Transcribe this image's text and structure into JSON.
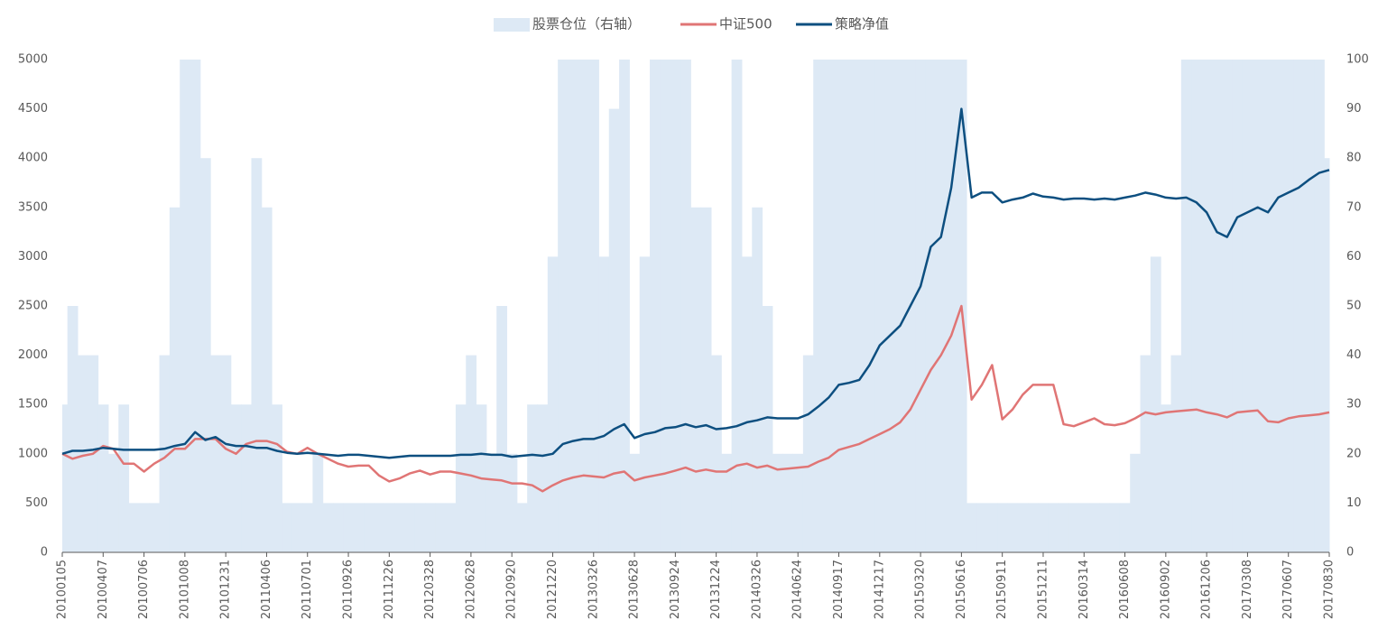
{
  "chart_data": {
    "type": "line",
    "categories": [
      "20100105",
      null,
      null,
      null,
      "20100407",
      null,
      null,
      null,
      "20100706",
      null,
      null,
      null,
      "20101008",
      null,
      null,
      null,
      "20101231",
      null,
      null,
      null,
      "20110406",
      null,
      null,
      null,
      "20110701",
      null,
      null,
      null,
      "20110926",
      null,
      null,
      null,
      "20111226",
      null,
      null,
      null,
      "20120328",
      null,
      null,
      null,
      "20120628",
      null,
      null,
      null,
      "20120920",
      null,
      null,
      null,
      "20121220",
      null,
      null,
      null,
      "20130326",
      null,
      null,
      null,
      "20130628",
      null,
      null,
      null,
      "20130924",
      null,
      null,
      null,
      "20131224",
      null,
      null,
      null,
      "20140326",
      null,
      null,
      null,
      "20140624",
      null,
      null,
      null,
      "20140917",
      null,
      null,
      null,
      "20141217",
      null,
      null,
      null,
      "20150320",
      null,
      null,
      null,
      "20150616",
      null,
      null,
      null,
      "20150911",
      null,
      null,
      null,
      "20151211",
      null,
      null,
      null,
      "20160314",
      null,
      null,
      null,
      "20160608",
      null,
      null,
      null,
      "20160902",
      null,
      null,
      null,
      "20161206",
      null,
      null,
      null,
      "20170308",
      null,
      null,
      null,
      "20170607",
      null,
      null,
      null,
      "20170830"
    ],
    "series": [
      {
        "name": "股票仓位（右轴）",
        "type": "area",
        "axis": "y2",
        "color": "#dde9f5",
        "values": [
          30,
          50,
          40,
          40,
          30,
          20,
          30,
          10,
          10,
          10,
          40,
          70,
          100,
          100,
          80,
          40,
          40,
          30,
          30,
          80,
          70,
          30,
          10,
          10,
          10,
          20,
          10,
          10,
          10,
          10,
          10,
          10,
          10,
          10,
          10,
          10,
          10,
          10,
          10,
          30,
          40,
          30,
          20,
          50,
          20,
          10,
          30,
          30,
          60,
          100,
          100,
          100,
          100,
          60,
          90,
          100,
          20,
          60,
          100,
          100,
          100,
          100,
          70,
          70,
          40,
          20,
          100,
          60,
          70,
          50,
          20,
          20,
          20,
          40,
          100,
          100,
          100,
          100,
          100,
          100,
          100,
          100,
          100,
          100,
          100,
          100,
          100,
          100,
          100,
          10,
          10,
          10,
          10,
          10,
          10,
          10,
          10,
          10,
          10,
          10,
          10,
          10,
          10,
          10,
          10,
          20,
          40,
          60,
          30,
          40,
          100,
          100,
          100,
          100,
          100,
          100,
          100,
          100,
          100,
          100,
          100,
          100,
          100,
          100,
          80
        ]
      },
      {
        "name": "中证500",
        "type": "line",
        "color": "#e07575",
        "values": [
          1000,
          950,
          980,
          1000,
          1080,
          1050,
          900,
          900,
          820,
          900,
          960,
          1050,
          1050,
          1150,
          1150,
          1150,
          1050,
          1000,
          1100,
          1130,
          1130,
          1100,
          1020,
          1000,
          1060,
          1000,
          950,
          900,
          870,
          880,
          880,
          780,
          720,
          750,
          800,
          830,
          790,
          820,
          820,
          800,
          780,
          750,
          740,
          730,
          700,
          700,
          680,
          620,
          680,
          730,
          760,
          780,
          770,
          760,
          800,
          820,
          730,
          760,
          780,
          800,
          830,
          860,
          820,
          840,
          820,
          820,
          880,
          900,
          860,
          880,
          840,
          850,
          860,
          870,
          920,
          960,
          1040,
          1070,
          1100,
          1150,
          1200,
          1250,
          1320,
          1450,
          1650,
          1850,
          2000,
          2200,
          2500,
          1550,
          1700,
          1900,
          1350,
          1450,
          1600,
          1700,
          1700,
          1700,
          1300,
          1280,
          1320,
          1360,
          1300,
          1290,
          1310,
          1360,
          1420,
          1400,
          1420,
          1430,
          1440,
          1450,
          1420,
          1400,
          1370,
          1420,
          1430,
          1440,
          1330,
          1320,
          1360,
          1380,
          1390,
          1400,
          1420
        ]
      },
      {
        "name": "策略净值",
        "type": "line",
        "color": "#0d4f80",
        "values": [
          1000,
          1030,
          1030,
          1040,
          1060,
          1050,
          1040,
          1040,
          1040,
          1040,
          1050,
          1080,
          1100,
          1220,
          1140,
          1170,
          1100,
          1080,
          1080,
          1060,
          1060,
          1030,
          1010,
          1000,
          1010,
          1000,
          990,
          980,
          990,
          990,
          980,
          970,
          960,
          970,
          980,
          980,
          980,
          980,
          980,
          990,
          990,
          1000,
          990,
          990,
          970,
          980,
          990,
          980,
          1000,
          1100,
          1130,
          1150,
          1150,
          1180,
          1250,
          1300,
          1160,
          1200,
          1220,
          1260,
          1270,
          1300,
          1270,
          1290,
          1250,
          1260,
          1280,
          1320,
          1340,
          1370,
          1360,
          1360,
          1360,
          1400,
          1480,
          1570,
          1700,
          1720,
          1750,
          1900,
          2100,
          2200,
          2300,
          2500,
          2700,
          3100,
          3200,
          3700,
          4500,
          3600,
          3650,
          3650,
          3550,
          3580,
          3600,
          3640,
          3610,
          3600,
          3580,
          3590,
          3590,
          3580,
          3590,
          3580,
          3600,
          3620,
          3650,
          3630,
          3600,
          3590,
          3600,
          3550,
          3450,
          3250,
          3200,
          3400,
          3450,
          3500,
          3450,
          3600,
          3650,
          3700,
          3780,
          3850,
          3880
        ]
      }
    ],
    "ylim": [
      0,
      5000
    ],
    "yticks": [
      0,
      500,
      1000,
      1500,
      2000,
      2500,
      3000,
      3500,
      4000,
      4500,
      5000
    ],
    "y2lim": [
      0,
      100
    ],
    "y2ticks": [
      0,
      10,
      20,
      30,
      40,
      50,
      60,
      70,
      80,
      90,
      100
    ],
    "legend": "top"
  }
}
